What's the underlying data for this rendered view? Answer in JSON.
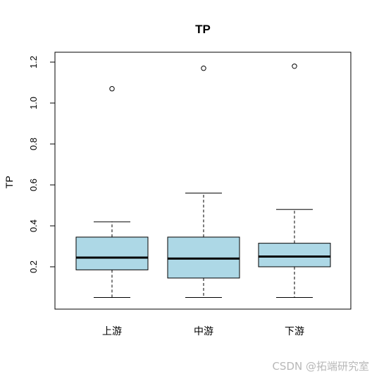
{
  "chart_data": {
    "type": "boxplot",
    "title": "TP",
    "xlabel": "",
    "ylabel": "TP",
    "ylim": [
      0.0,
      1.22
    ],
    "yticks": [
      0.2,
      0.4,
      0.6,
      0.8,
      1.0,
      1.2
    ],
    "ytick_labels": [
      "0.2",
      "0.4",
      "0.6",
      "0.8",
      "1.0",
      "1.2"
    ],
    "grid": false,
    "legend": "none",
    "box_color": "#add8e6",
    "categories": [
      "上游",
      "中游",
      "下游"
    ],
    "boxes": [
      {
        "category": "上游",
        "whisker_low": 0.05,
        "q1": 0.185,
        "median": 0.245,
        "q3": 0.345,
        "whisker_high": 0.42,
        "outliers": [
          1.07
        ]
      },
      {
        "category": "中游",
        "whisker_low": 0.05,
        "q1": 0.145,
        "median": 0.24,
        "q3": 0.345,
        "whisker_high": 0.56,
        "outliers": [
          1.17
        ]
      },
      {
        "category": "下游",
        "whisker_low": 0.05,
        "q1": 0.2,
        "median": 0.25,
        "q3": 0.315,
        "whisker_high": 0.48,
        "outliers": [
          1.18
        ]
      }
    ]
  },
  "watermark": "CSDN @拓端研究室"
}
